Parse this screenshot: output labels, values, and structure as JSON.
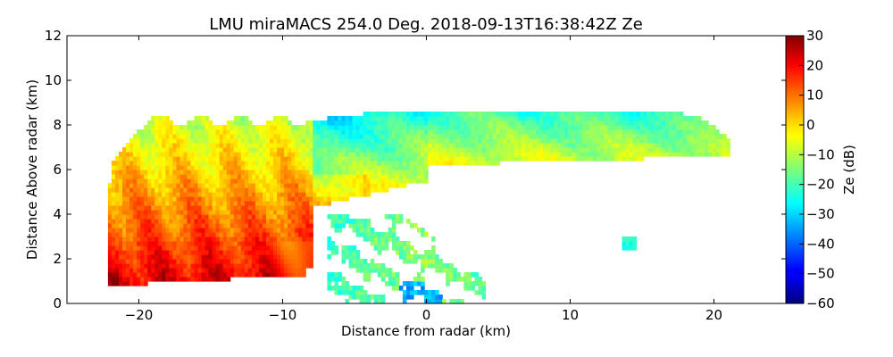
{
  "chart_data": {
    "type": "heatmap",
    "title": "LMU miraMACS 254.0 Deg. 2018-09-13T16:38:42Z  Ze",
    "xlabel": "Distance from radar (km)",
    "ylabel": "Distance Above radar  (km)",
    "xlim": [
      -25,
      25
    ],
    "ylim": [
      0,
      12
    ],
    "x_ticks": [
      -20,
      -10,
      0,
      10,
      20
    ],
    "x_tick_labels": [
      "−20",
      "−10",
      "0",
      "10",
      "20"
    ],
    "y_ticks": [
      0,
      2,
      4,
      6,
      8,
      10,
      12
    ],
    "y_tick_labels": [
      "0",
      "2",
      "4",
      "6",
      "8",
      "10",
      "12"
    ],
    "colorbar": {
      "label": "Ze (dB)",
      "range": [
        -60,
        30
      ],
      "ticks": [
        30,
        20,
        10,
        0,
        -10,
        -20,
        -30,
        -40,
        -50,
        -60
      ],
      "tick_labels": [
        "30",
        "20",
        "10",
        "0",
        "−10",
        "−20",
        "−30",
        "−40",
        "−50",
        "−60"
      ],
      "colormap": "jet"
    },
    "regions": [
      {
        "name": "main-echo-left",
        "x_range": [
          -22,
          -8
        ],
        "height_range": [
          0.8,
          8.5
        ],
        "ze_range_db": [
          -15,
          25
        ]
      },
      {
        "name": "anvil",
        "x_range": [
          -8,
          21
        ],
        "height_range": [
          5.0,
          9.2
        ],
        "ze_range_db": [
          -30,
          0
        ]
      },
      {
        "name": "low-fragments",
        "x_range": [
          -7,
          4
        ],
        "height_range": [
          0.0,
          4.0
        ],
        "ze_range_db": [
          -45,
          -10
        ]
      },
      {
        "name": "small-echo",
        "x_range": [
          13.5,
          14.5
        ],
        "height_range": [
          2.5,
          3.1
        ],
        "ze_range_db": [
          -30,
          -20
        ]
      }
    ]
  }
}
